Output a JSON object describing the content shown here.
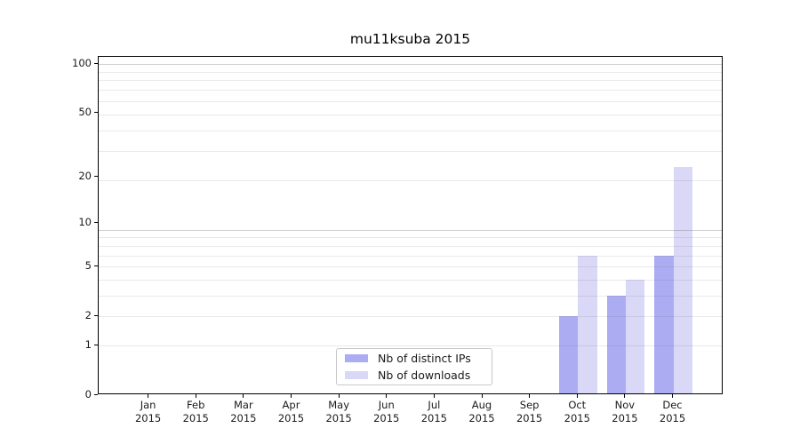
{
  "chart_data": {
    "type": "bar",
    "title": "mu11ksuba 2015",
    "categories": [
      "Jan",
      "Feb",
      "Mar",
      "Apr",
      "May",
      "Jun",
      "Jul",
      "Aug",
      "Sep",
      "Oct",
      "Nov",
      "Dec"
    ],
    "category_year": "2015",
    "series": [
      {
        "name": "Nb of distinct IPs",
        "color": "#acacf2",
        "values": [
          0,
          0,
          0,
          0,
          0,
          0,
          0,
          0,
          0,
          2,
          3,
          6
        ]
      },
      {
        "name": "Nb of downloads",
        "color": "#d9d9f7",
        "values": [
          0,
          0,
          0,
          0,
          0,
          0,
          0,
          0,
          0,
          6,
          4,
          23
        ]
      }
    ],
    "y_axis": {
      "scale": "log1p",
      "ticks": [
        0,
        1,
        2,
        5,
        10,
        20,
        50,
        100
      ],
      "ylim": [
        0,
        110
      ]
    },
    "x_axis": {
      "tick_label_line1": [
        "Jan",
        "Feb",
        "Mar",
        "Apr",
        "May",
        "Jun",
        "Jul",
        "Aug",
        "Sep",
        "Oct",
        "Nov",
        "Dec"
      ],
      "tick_label_line2": "2015"
    },
    "gridlines": {
      "major_values": [
        9,
        99
      ],
      "minor_values": [
        1,
        2,
        3,
        4,
        5,
        6,
        7,
        8,
        19,
        29,
        39,
        49,
        59,
        69,
        79,
        89
      ],
      "major_color": "rgba(110,110,110,0.33)",
      "minor_color": "rgba(110,110,110,0.15)"
    },
    "legend": {
      "position": "lower center",
      "entries": [
        "Nb of distinct IPs",
        "Nb of downloads"
      ]
    }
  }
}
